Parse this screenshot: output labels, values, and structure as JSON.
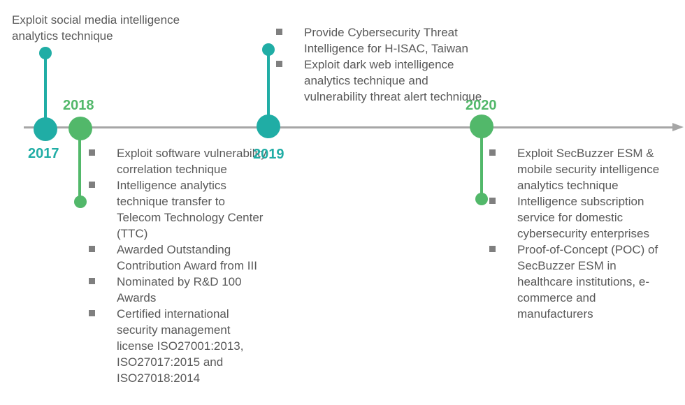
{
  "colors": {
    "teal": "#20ada5",
    "green": "#52b86a",
    "axis": "#a6a6a6",
    "text": "#595959"
  },
  "milestones": [
    {
      "year": "2017",
      "items": [
        "Exploit social media intelligence analytics technique"
      ]
    },
    {
      "year": "2018",
      "items": [
        "Exploit software vulnerability correlation technique",
        "Intelligence analytics technique transfer to Telecom Technology Center (TTC)",
        "Awarded Outstanding Contribution Award from III",
        "Nominated by R&D 100 Awards",
        "Certified international security management license ISO27001:2013, ISO27017:2015 and ISO27018:2014"
      ]
    },
    {
      "year": "2019",
      "items": [
        "Provide Cybersecurity Threat Intelligence for H-ISAC, Taiwan",
        "Exploit dark web intelligence analytics technique and vulnerability threat alert technique"
      ]
    },
    {
      "year": "2020",
      "items": [
        "Exploit SecBuzzer ESM & mobile security intelligence analytics technique",
        "Intelligence subscription service for domestic cybersecurity enterprises",
        "Proof-of-Concept (POC) of SecBuzzer ESM in healthcare institutions, e-commerce and manufacturers"
      ]
    }
  ]
}
